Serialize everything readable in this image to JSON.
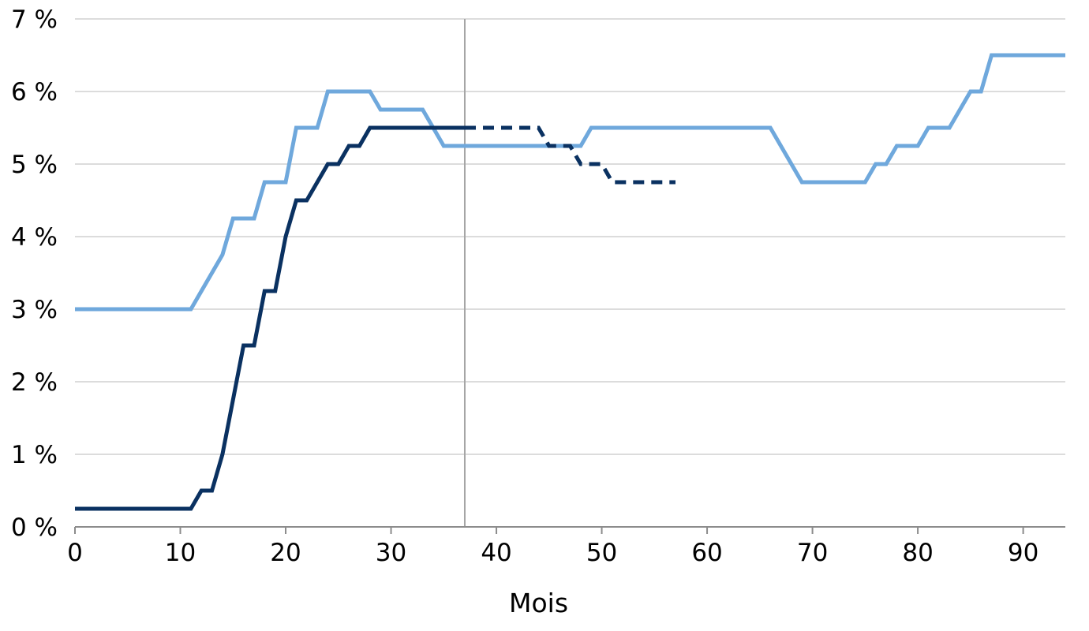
{
  "chart_data": {
    "type": "line",
    "title": "",
    "xlabel": "Mois",
    "ylabel": "",
    "xlim": [
      0,
      94
    ],
    "ylim": [
      0,
      7
    ],
    "x_ticks": [
      0,
      10,
      20,
      30,
      40,
      50,
      60,
      70,
      80,
      90
    ],
    "y_ticks": [
      0,
      1,
      2,
      3,
      4,
      5,
      6,
      7
    ],
    "y_tick_suffix": " %",
    "grid": "horizontal",
    "reference_line_x": 37,
    "series": [
      {
        "color": "#6fa8dc",
        "style": "solid",
        "points": [
          [
            0,
            3
          ],
          [
            11,
            3
          ],
          [
            14,
            3.75
          ],
          [
            15,
            4.25
          ],
          [
            17,
            4.25
          ],
          [
            18,
            4.75
          ],
          [
            20,
            4.75
          ],
          [
            21,
            5.5
          ],
          [
            23,
            5.5
          ],
          [
            24,
            6
          ],
          [
            28,
            6
          ],
          [
            29,
            5.75
          ],
          [
            33,
            5.75
          ],
          [
            35,
            5.25
          ],
          [
            48,
            5.25
          ],
          [
            49,
            5.5
          ],
          [
            66,
            5.5
          ],
          [
            69,
            4.75
          ],
          [
            75,
            4.75
          ],
          [
            76,
            5
          ],
          [
            77,
            5
          ],
          [
            78,
            5.25
          ],
          [
            80,
            5.25
          ],
          [
            81,
            5.5
          ],
          [
            83,
            5.5
          ],
          [
            85,
            6
          ],
          [
            86,
            6
          ],
          [
            87,
            6.5
          ],
          [
            94,
            6.5
          ]
        ]
      },
      {
        "color": "#0a3161",
        "style": "solid",
        "points": [
          [
            0,
            0.25
          ],
          [
            11,
            0.25
          ],
          [
            12,
            0.5
          ],
          [
            13,
            0.5
          ],
          [
            14,
            1
          ],
          [
            16,
            2.5
          ],
          [
            17,
            2.5
          ],
          [
            18,
            3.25
          ],
          [
            19,
            3.25
          ],
          [
            20,
            4
          ],
          [
            21,
            4.5
          ],
          [
            22,
            4.5
          ],
          [
            24,
            5
          ],
          [
            25,
            5
          ],
          [
            26,
            5.25
          ],
          [
            27,
            5.25
          ],
          [
            28,
            5.5
          ],
          [
            37,
            5.5
          ]
        ]
      },
      {
        "color": "#0a3161",
        "style": "dashed",
        "points": [
          [
            37,
            5.5
          ],
          [
            44,
            5.5
          ],
          [
            45,
            5.25
          ],
          [
            47,
            5.25
          ],
          [
            48,
            5
          ],
          [
            50,
            5
          ],
          [
            51,
            4.75
          ],
          [
            57,
            4.75
          ]
        ]
      }
    ]
  }
}
